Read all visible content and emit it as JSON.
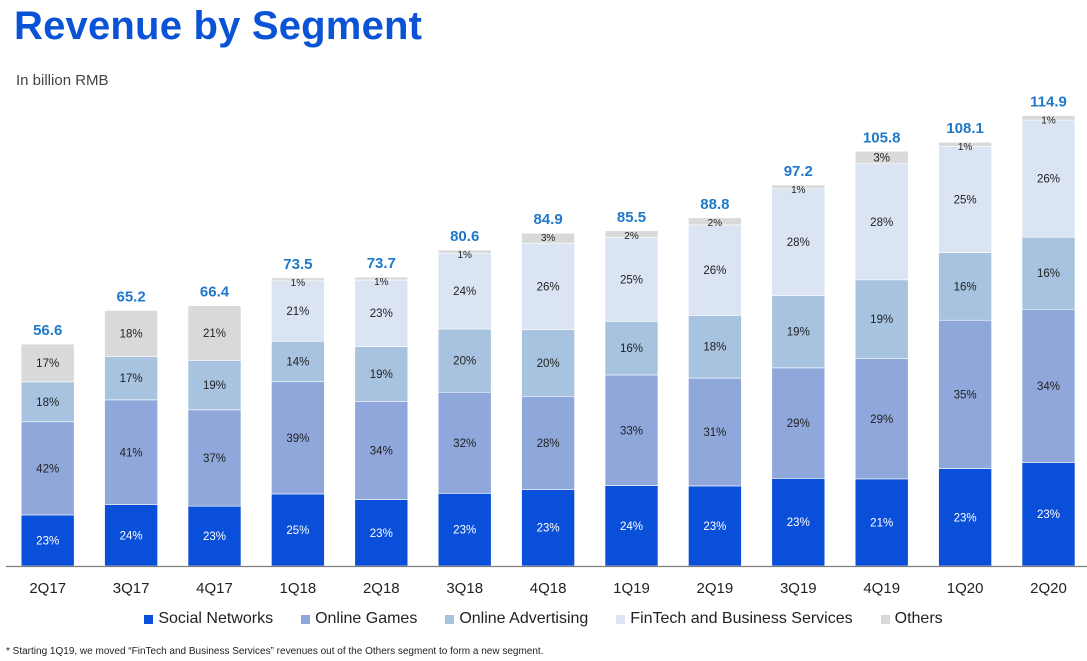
{
  "title": "Revenue by Segment",
  "subtitle": "In billion RMB",
  "footnote": "* Starting 1Q19, we moved “FinTech and Business Services” revenues out of the Others segment to form a new segment.",
  "chart_data": {
    "type": "bar",
    "stacked": true,
    "title": "Revenue by Segment",
    "ylabel": "In billion RMB",
    "ylim": [
      0,
      120
    ],
    "grid": false,
    "legend_position": "bottom",
    "categories": [
      "2Q17",
      "3Q17",
      "4Q17",
      "1Q18",
      "2Q18",
      "3Q18",
      "4Q18",
      "1Q19",
      "2Q19",
      "3Q19",
      "4Q19",
      "1Q20",
      "2Q20"
    ],
    "totals": [
      56.6,
      65.2,
      66.4,
      73.5,
      73.7,
      80.6,
      84.9,
      85.5,
      88.8,
      97.2,
      105.8,
      108.1,
      114.9
    ],
    "total_labels": [
      "56.6",
      "65.2",
      "66.4",
      "73.5",
      "73.7",
      "80.6",
      "84.9",
      "85.5",
      "88.8",
      "97.2",
      "105.8",
      "108.1",
      "114.9"
    ],
    "series": [
      {
        "name": "Social Networks",
        "color": "#0a4fd9",
        "label_color": "#ffffff",
        "percent": [
          23,
          24,
          23,
          25,
          23,
          23,
          23,
          24,
          23,
          23,
          21,
          23,
          23
        ],
        "labels": [
          "23%",
          "24%",
          "23%",
          "25%",
          "23%",
          "23%",
          "23%",
          "24%",
          "23%",
          "23%",
          "21%",
          "23%",
          "23%"
        ]
      },
      {
        "name": "Online Games",
        "color": "#8fa7da",
        "label_color": "#1f1f1f",
        "percent": [
          42,
          41,
          37,
          39,
          34,
          32,
          28,
          33,
          31,
          29,
          29,
          35,
          34
        ],
        "labels": [
          "42%",
          "41%",
          "37%",
          "39%",
          "34%",
          "32%",
          "28%",
          "33%",
          "31%",
          "29%",
          "29%",
          "35%",
          "34%"
        ]
      },
      {
        "name": "Online Advertising",
        "color": "#a7c3e0",
        "label_color": "#1f1f1f",
        "percent": [
          18,
          17,
          19,
          14,
          19,
          20,
          20,
          16,
          18,
          19,
          19,
          16,
          16
        ],
        "labels": [
          "18%",
          "17%",
          "19%",
          "14%",
          "19%",
          "20%",
          "20%",
          "16%",
          "18%",
          "19%",
          "19%",
          "16%",
          "16%"
        ]
      },
      {
        "name": "FinTech and Business Services",
        "color": "#dbe4f3",
        "label_color": "#1f1f1f",
        "percent": [
          0,
          0,
          0,
          21,
          23,
          24,
          26,
          25,
          26,
          28,
          28,
          25,
          26
        ],
        "labels": [
          "",
          "",
          "",
          "21%",
          "23%",
          "24%",
          "26%",
          "25%",
          "26%",
          "28%",
          "28%",
          "25%",
          "26%"
        ]
      },
      {
        "name": "Others",
        "color": "#d9d9d9",
        "label_color": "#1f1f1f",
        "percent": [
          17,
          18,
          21,
          1,
          1,
          1,
          3,
          2,
          2,
          1,
          3,
          1,
          1
        ],
        "labels": [
          "17%",
          "18%",
          "21%",
          "1%",
          "1%",
          "1%",
          "3%",
          "2%",
          "2%",
          "1%",
          "3%",
          "1%",
          "1%"
        ]
      }
    ],
    "total_label_color": "#1f78c8",
    "axis_color": "#7f7f7f"
  }
}
